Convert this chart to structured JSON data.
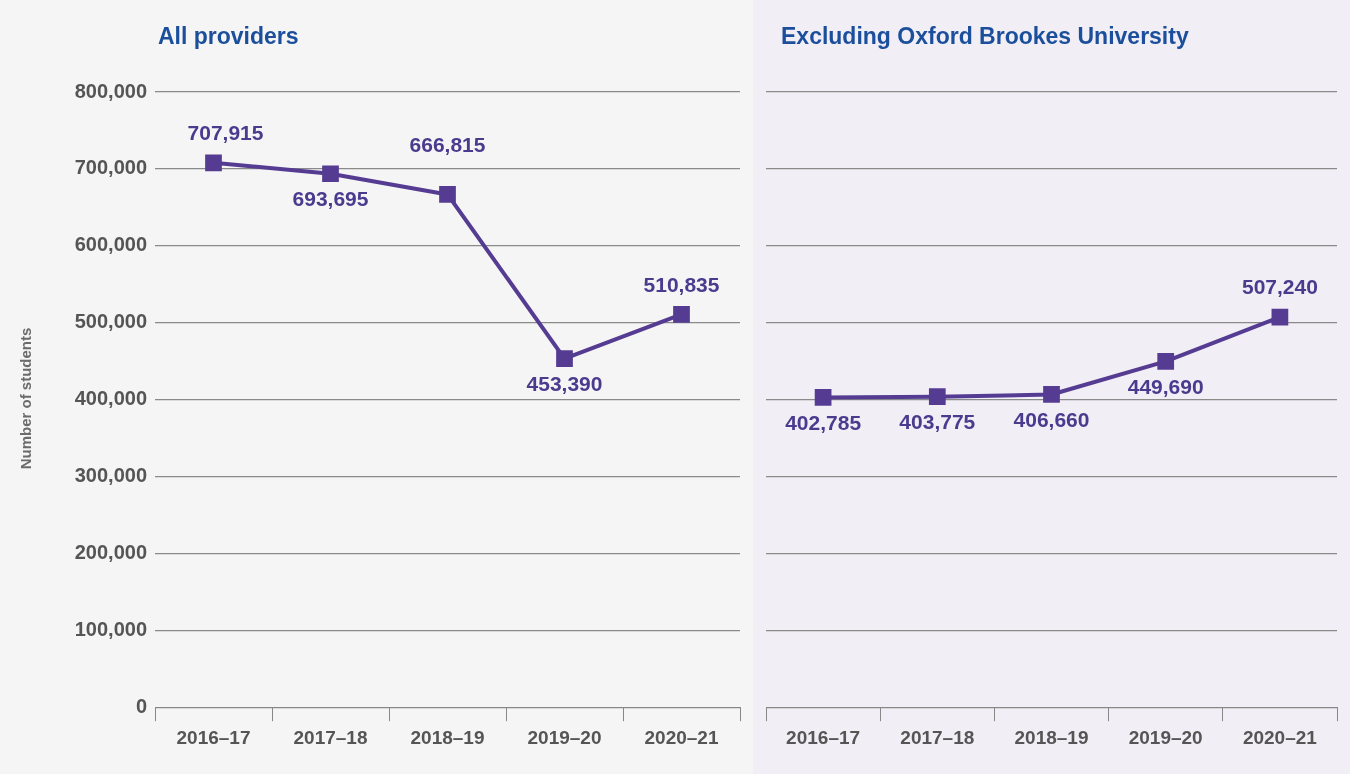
{
  "chart_data": [
    {
      "type": "line",
      "title": "All providers",
      "ylabel": "Number of students",
      "categories": [
        "2016–17",
        "2017–18",
        "2018–19",
        "2019–20",
        "2020–21"
      ],
      "series": [
        {
          "color": "#553c92",
          "values": [
            707915,
            693695,
            666815,
            453390,
            510835
          ],
          "value_labels": [
            "707,915",
            "693,695",
            "666,815",
            "453,390",
            "510,835"
          ]
        }
      ],
      "ylim": [
        0,
        800000
      ],
      "yticks": [
        {
          "value": 0,
          "label": "0"
        },
        {
          "value": 100000,
          "label": "100,000"
        },
        {
          "value": 200000,
          "label": "200,000"
        },
        {
          "value": 300000,
          "label": "300,000"
        },
        {
          "value": 400000,
          "label": "400,000"
        },
        {
          "value": 500000,
          "label": "500,000"
        },
        {
          "value": 600000,
          "label": "600,000"
        },
        {
          "value": 700000,
          "label": "700,000"
        },
        {
          "value": 800000,
          "label": "800,000"
        }
      ],
      "grid": "y",
      "legend": false,
      "marker": "square",
      "line_style": "solid"
    },
    {
      "type": "line",
      "title": "Excluding Oxford Brookes University",
      "categories": [
        "2016–17",
        "2017–18",
        "2018–19",
        "2019–20",
        "2020–21"
      ],
      "series": [
        {
          "color": "#553c92",
          "values": [
            402785,
            403775,
            406660,
            449690,
            507240
          ],
          "value_labels": [
            "402,785",
            "403,775",
            "406,660",
            "449,690",
            "507,240"
          ]
        }
      ],
      "ylim": [
        0,
        800000
      ],
      "yticks": [
        {
          "value": 0,
          "label": null
        },
        {
          "value": 100000,
          "label": null
        },
        {
          "value": 200000,
          "label": null
        },
        {
          "value": 300000,
          "label": null
        },
        {
          "value": 400000,
          "label": null
        },
        {
          "value": 500000,
          "label": null
        },
        {
          "value": 600000,
          "label": null
        },
        {
          "value": 700000,
          "label": null
        },
        {
          "value": 800000,
          "label": null
        }
      ],
      "tick_labels": "x",
      "grid": "y",
      "legend": false,
      "marker": "square",
      "line_style": "solid"
    }
  ]
}
